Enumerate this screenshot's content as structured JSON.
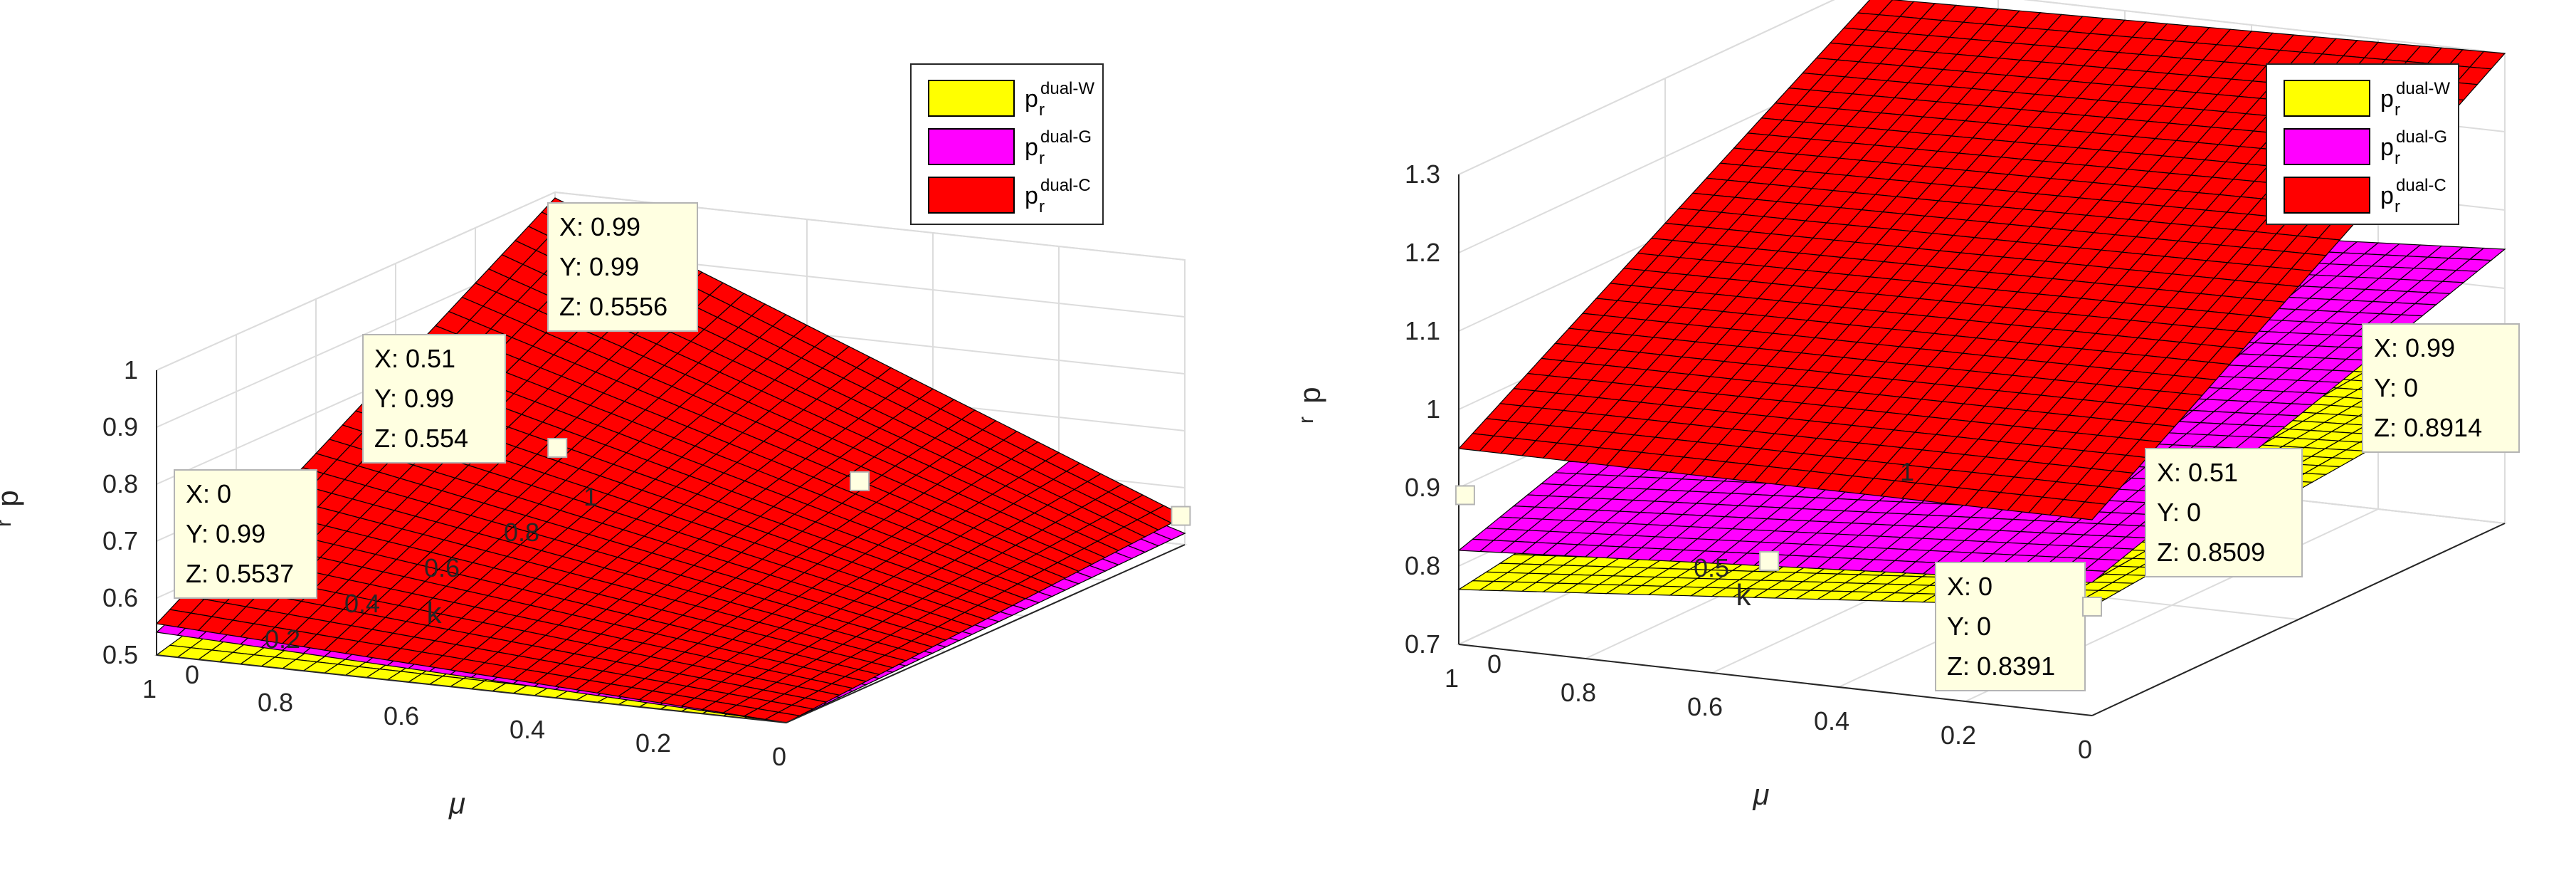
{
  "chart_data": [
    {
      "type": "surface3d",
      "xlabel": "μ",
      "ylabel": "k",
      "zlabel": "p",
      "zlabel_sub": "r",
      "xlim": [
        0,
        1
      ],
      "ylim": [
        0,
        1
      ],
      "zlim": [
        0.5,
        1
      ],
      "x_ticks": [
        "0",
        "0.2",
        "0.4",
        "0.6",
        "0.8",
        "1"
      ],
      "y_ticks": [
        "0",
        "0.2",
        "0.4",
        "0.6",
        "0.8",
        "1"
      ],
      "z_ticks": [
        "0.5",
        "0.6",
        "0.7",
        "0.8",
        "0.9",
        "1"
      ],
      "grid": true,
      "legend_position": "top-right",
      "series": [
        {
          "name": "p",
          "name_sub": "r",
          "name_sup": "dual-W",
          "color": "#ffff00",
          "corners": {
            "x0y0": 0.5,
            "x1y0": 0.5,
            "x0y1": 0.52,
            "x1y1": 0.7
          }
        },
        {
          "name": "p",
          "name_sub": "r",
          "name_sup": "dual-G",
          "color": "#ff00ff",
          "corners": {
            "x0y0": 0.5,
            "x1y0": 0.54,
            "x0y1": 0.52,
            "x1y1": 0.86
          }
        },
        {
          "name": "p",
          "name_sub": "r",
          "name_sup": "dual-C",
          "color": "#ff0000",
          "corners": {
            "x0y0": 0.5,
            "x1y0": 0.555,
            "x0y1": 0.55,
            "x1y1": 0.99
          }
        }
      ],
      "datatips": [
        {
          "x": "0",
          "y": "0.99",
          "z": "0.5537",
          "xv": 0,
          "yv": 0.99,
          "zv": 0.5537
        },
        {
          "x": "0.51",
          "y": "0.99",
          "z": "0.554",
          "xv": 0.51,
          "yv": 0.99,
          "zv": 0.554
        },
        {
          "x": "0.99",
          "y": "0.99",
          "z": "0.5556",
          "xv": 0.99,
          "yv": 0.99,
          "zv": 0.5556
        }
      ]
    },
    {
      "type": "surface3d",
      "xlabel": "μ",
      "ylabel": "k",
      "zlabel": "p",
      "zlabel_sub": "r",
      "xlim": [
        0,
        1
      ],
      "ylim": [
        0,
        1
      ],
      "zlim": [
        0.7,
        1.3
      ],
      "x_ticks": [
        "0",
        "0.2",
        "0.4",
        "0.6",
        "0.8",
        "1"
      ],
      "y_ticks": [
        "0",
        "0.5",
        "1"
      ],
      "z_ticks": [
        "0.7",
        "0.8",
        "0.9",
        "1",
        "1.1",
        "1.2",
        "1.3"
      ],
      "grid": true,
      "legend_position": "top-right",
      "series": [
        {
          "name": "p",
          "name_sub": "r",
          "name_sup": "dual-W",
          "color": "#ffff00",
          "corners": {
            "x0y0": 0.8391,
            "x1y0": 0.77,
            "x0y1": 0.8914,
            "x1y1": 0.86
          }
        },
        {
          "name": "p",
          "name_sub": "r",
          "name_sup": "dual-G",
          "color": "#ff00ff",
          "corners": {
            "x0y0": 0.87,
            "x1y0": 0.82,
            "x0y1": 1.05,
            "x1y1": 1.0
          }
        },
        {
          "name": "p",
          "name_sub": "r",
          "name_sup": "dual-C",
          "color": "#ff0000",
          "corners": {
            "x0y0": 0.95,
            "x1y0": 0.95,
            "x0y1": 1.3,
            "x1y1": 1.28
          }
        }
      ],
      "datatips": [
        {
          "x": "0",
          "y": "0",
          "z": "0.8391",
          "xv": 0,
          "yv": 0,
          "zv": 0.8391
        },
        {
          "x": "0.51",
          "y": "0",
          "z": "0.8509",
          "xv": 0.51,
          "yv": 0,
          "zv": 0.8509
        },
        {
          "x": "0.99",
          "y": "0",
          "z": "0.8914",
          "xv": 0.99,
          "yv": 0,
          "zv": 0.8914
        }
      ]
    }
  ]
}
